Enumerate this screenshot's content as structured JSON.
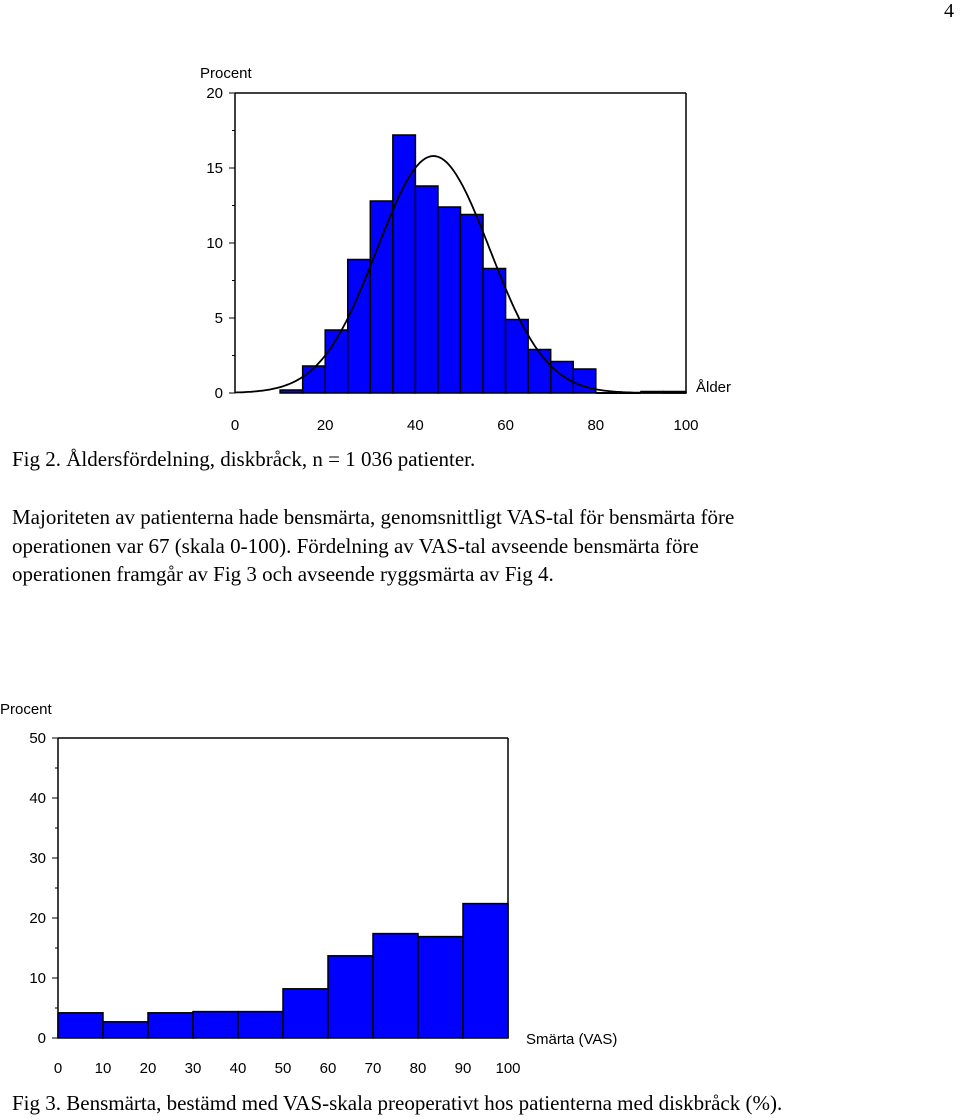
{
  "page_number": "4",
  "fig2_caption": "Fig 2. Åldersfördelning, diskbråck, n = 1 036 patienter.",
  "body_lines": [
    "Majoriteten av patienterna hade bensmärta, genomsnittligt VAS-tal för bensmärta före",
    "operationen var 67 (skala 0-100). Fördelning av VAS-tal avseende bensmärta före",
    "operationen framgår av Fig 3 och avseende ryggsmärta av Fig 4."
  ],
  "fig3_caption": "Fig 3. Bensmärta, bestämd med VAS-skala preoperativt hos patienterna med diskbråck (%).",
  "colors": {
    "bar_fill": "#0000ff",
    "bar_stroke": "#000000",
    "curve": "#000000"
  },
  "chart_data": [
    {
      "type": "bar",
      "histogram": true,
      "ylabel": "Procent",
      "xlabel": "Ålder",
      "x_ticks": [
        0,
        20,
        40,
        60,
        80,
        100
      ],
      "y_ticks": [
        0,
        5,
        10,
        15,
        20
      ],
      "xlim": [
        0,
        100
      ],
      "ylim": [
        0,
        20
      ],
      "bin_width": 5,
      "bin_starts": [
        10,
        15,
        20,
        25,
        30,
        35,
        40,
        45,
        50,
        55,
        60,
        65,
        70,
        75,
        80,
        85,
        90,
        95
      ],
      "values": [
        0.2,
        1.8,
        4.2,
        8.9,
        12.8,
        17.2,
        13.8,
        12.4,
        11.9,
        8.3,
        4.9,
        2.9,
        2.1,
        1.6,
        0,
        0,
        0.1,
        0.1
      ],
      "normal_curve": {
        "mean": 44,
        "sd": 12.5,
        "peak": 15.8
      }
    },
    {
      "type": "bar",
      "histogram": true,
      "ylabel": "Procent",
      "xlabel": "Smärta (VAS)",
      "x_ticks": [
        0,
        10,
        20,
        30,
        40,
        50,
        60,
        70,
        80,
        90,
        100
      ],
      "y_ticks": [
        0,
        10,
        20,
        30,
        40,
        50
      ],
      "xlim": [
        0,
        100
      ],
      "ylim": [
        0,
        50
      ],
      "bin_width": 10,
      "bin_starts": [
        0,
        10,
        20,
        30,
        40,
        50,
        60,
        70,
        80,
        90
      ],
      "values": [
        4.2,
        2.7,
        4.2,
        4.4,
        4.4,
        8.2,
        13.7,
        17.4,
        16.9,
        22.4
      ]
    }
  ]
}
